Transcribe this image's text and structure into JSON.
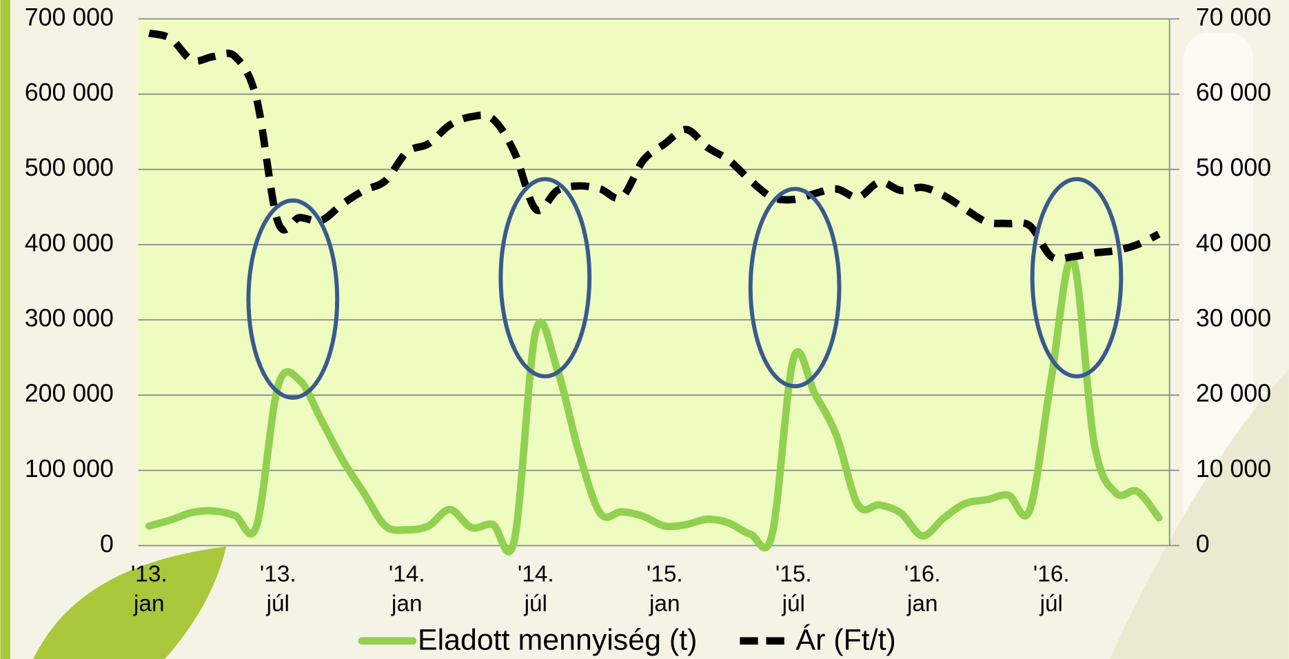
{
  "chart_data": {
    "type": "line",
    "categories": [
      "'13. jan",
      null,
      null,
      null,
      null,
      null,
      "'13. júl",
      null,
      null,
      null,
      null,
      null,
      "'14. jan",
      null,
      null,
      null,
      null,
      null,
      "'14. júl",
      null,
      null,
      null,
      null,
      null,
      "'15. jan",
      null,
      null,
      null,
      null,
      null,
      "'15. júl",
      null,
      null,
      null,
      null,
      null,
      "'16. jan",
      null,
      null,
      null,
      null,
      null,
      "'16. júl",
      null,
      null,
      null,
      null,
      null
    ],
    "series": [
      {
        "name": "Eladott mennyiség (t)",
        "color": "#92d050",
        "style": "solid",
        "values": [
          26000,
          34000,
          44000,
          46000,
          40000,
          26000,
          212000,
          220000,
          168000,
          114000,
          70000,
          26000,
          21000,
          26000,
          48000,
          24000,
          28000,
          7000,
          285000,
          234000,
          125000,
          43000,
          45000,
          39000,
          26000,
          28000,
          35000,
          30000,
          15000,
          15000,
          249000,
          201000,
          146000,
          54000,
          54000,
          43000,
          13000,
          37000,
          56000,
          61000,
          67000,
          48000,
          223000,
          381000,
          135000,
          70000,
          72000,
          37000
        ]
      },
      {
        "name": "Ár (Ft/t)",
        "color": "#000000",
        "style": "dashed",
        "axis": "y2",
        "values": [
          68100,
          67400,
          64500,
          65000,
          65000,
          59400,
          43000,
          43600,
          43200,
          45400,
          47200,
          48500,
          52300,
          53400,
          55900,
          57000,
          56700,
          52300,
          44700,
          47200,
          47800,
          47400,
          46300,
          51200,
          53400,
          55300,
          52900,
          51200,
          48500,
          46300,
          46000,
          46800,
          47400,
          46300,
          48300,
          47200,
          47600,
          46500,
          44700,
          43000,
          42800,
          42500,
          38400,
          38400,
          38900,
          39200,
          40000,
          41400
        ]
      }
    ],
    "ylim": [
      0,
      700000
    ],
    "yticks": [
      0,
      {
        "value": 100000,
        "label": "100 000"
      },
      {
        "value": 200000,
        "label": "200 000"
      },
      {
        "value": 300000,
        "label": "300 000"
      },
      {
        "value": 400000,
        "label": "400 000"
      },
      {
        "value": 500000,
        "label": "500 000"
      },
      {
        "value": 600000,
        "label": "600 000"
      },
      {
        "value": 700000,
        "label": "700 000"
      }
    ],
    "y2lim": [
      0,
      70000
    ],
    "y2ticks": [
      0,
      {
        "value": 10000,
        "label": "10 000"
      },
      {
        "value": 20000,
        "label": "20 000"
      },
      {
        "value": 30000,
        "label": "30 000"
      },
      {
        "value": 40000,
        "label": "40 000"
      },
      {
        "value": 50000,
        "label": "50 000"
      },
      {
        "value": 60000,
        "label": "60 000"
      },
      {
        "value": 70000,
        "label": "70 000"
      }
    ],
    "grid": true,
    "legend": "bottom"
  }
}
